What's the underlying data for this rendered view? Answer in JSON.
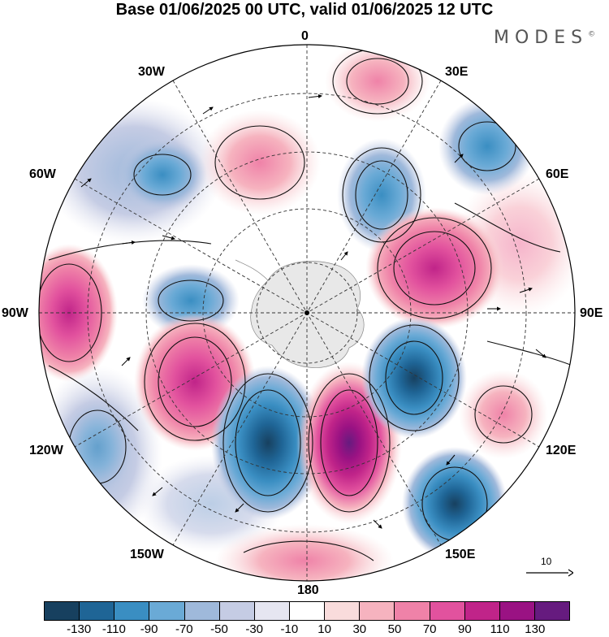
{
  "title": "Base 01/06/2025 00 UTC, valid 01/06/2025 12 UTC",
  "brand": {
    "name": "MODES",
    "mark": "©"
  },
  "longitude_labels": {
    "lon_0": "0",
    "lon_30e": "30E",
    "lon_60e": "60E",
    "lon_90e": "90E",
    "lon_120e": "120E",
    "lon_150e": "150E",
    "lon_180": "180",
    "lon_150w": "150W",
    "lon_120w": "120W",
    "lon_90w": "90W",
    "lon_60w": "60W",
    "lon_30w": "30W"
  },
  "vector_scale": {
    "label": "10"
  },
  "colorbar": {
    "colors": [
      "#17405f",
      "#1f6596",
      "#3a8ec2",
      "#6aaad6",
      "#9fb9db",
      "#c5cce4",
      "#e6e6f1",
      "#ffffff",
      "#f9dcdc",
      "#f6b3bf",
      "#ef82a8",
      "#e2529e",
      "#c02489",
      "#9a1283",
      "#661b7f"
    ],
    "tick_labels": [
      "-130",
      "-110",
      "-90",
      "-70",
      "-50",
      "-30",
      "-10",
      "10",
      "30",
      "50",
      "70",
      "90",
      "110",
      "130"
    ]
  },
  "map": {
    "projection": "south polar stereographic",
    "field_colors": {
      "land": "#e8e8e8",
      "ocean": "#ffffff"
    }
  }
}
